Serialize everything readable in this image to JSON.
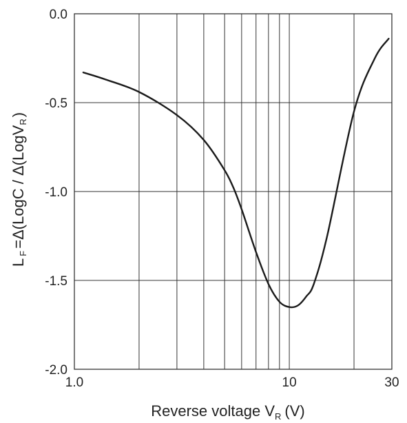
{
  "chart_data": {
    "type": "line",
    "title": "",
    "xlabel": {
      "main": "Reverse voltage V",
      "sub": "R",
      "unit": "(V)"
    },
    "ylabel": {
      "part1": "L",
      "part1_sub": "F",
      "part2": "=Δ(LogC / Δ(LogV",
      "part2_sub": "R",
      "part3": ")"
    },
    "x_scale": "log",
    "xlim": [
      1.0,
      30
    ],
    "ylim": [
      -2.0,
      0.0
    ],
    "x_ticks": [
      {
        "value": 1.0,
        "label": "1.0"
      },
      {
        "value": 10,
        "label": "10"
      },
      {
        "value": 30,
        "label": "30"
      }
    ],
    "y_ticks": [
      {
        "value": 0.0,
        "label": "0.0"
      },
      {
        "value": -0.5,
        "label": "-0.5"
      },
      {
        "value": -1.0,
        "label": "-1.0"
      },
      {
        "value": -1.5,
        "label": "-1.5"
      },
      {
        "value": -2.0,
        "label": "-2.0"
      }
    ],
    "x_gridlines": [
      2,
      3,
      4,
      5,
      6,
      7,
      8,
      9,
      10,
      20
    ],
    "y_gridlines": [
      -0.5,
      -1.0,
      -1.5
    ],
    "grid": true,
    "series": [
      {
        "x": [
          1.1,
          1.4,
          2.0,
          3.0,
          4.0,
          5.0,
          5.5,
          6.0,
          7.0,
          8.0,
          9.0,
          10.0,
          11.0,
          12.0,
          13.0,
          15.0,
          20.0,
          25.0,
          29.0
        ],
        "y": [
          -0.33,
          -0.37,
          -0.44,
          -0.57,
          -0.71,
          -0.88,
          -0.98,
          -1.1,
          -1.34,
          -1.52,
          -1.62,
          -1.65,
          -1.64,
          -1.59,
          -1.52,
          -1.25,
          -0.55,
          -0.25,
          -0.14
        ]
      }
    ],
    "line_color": "#1a1a1a",
    "grid_color": "#333333"
  }
}
